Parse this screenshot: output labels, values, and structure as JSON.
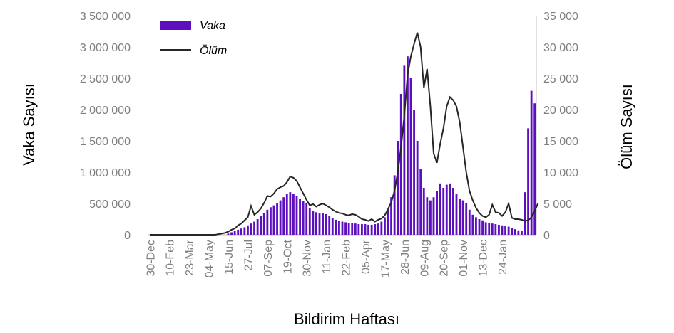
{
  "chart_data": {
    "type": "bar+line",
    "xlabel": "Bildirim Haftası",
    "ylabel_left": "Vaka Sayısı",
    "ylabel_right": "Ölüm Sayısı",
    "ylim_left": [
      0,
      3500000
    ],
    "ylim_right": [
      0,
      35000
    ],
    "yticks_left": [
      "0",
      "500 000",
      "1 000 000",
      "1 500 000",
      "2 000 000",
      "2 500 000",
      "3 000 000",
      "3 500 000"
    ],
    "yticks_right": [
      "0",
      "5 000",
      "10 000",
      "15 000",
      "20 000",
      "25 000",
      "30 000",
      "35 000"
    ],
    "x_tick_labels": [
      "30-Dec",
      "10-Feb",
      "23-Mar",
      "04-May",
      "15-Jun",
      "27-Jul",
      "07-Sep",
      "19-Oct",
      "30-Nov",
      "11-Jan",
      "22-Feb",
      "05-Apr",
      "17-May",
      "28-Jun",
      "09-Aug",
      "20-Sep",
      "01-Nov",
      "13-Dec",
      "24-Jan"
    ],
    "x_tick_every": 6,
    "legend": {
      "position": "top-left",
      "bar_label": "Vaka",
      "line_label": "Ölüm"
    },
    "colors": {
      "bar": "#5b0fbe",
      "line": "#262626",
      "axis": "#bfbfbf",
      "tick_text": "#7f7f7f"
    },
    "series": [
      {
        "name": "Vaka",
        "kind": "bar",
        "axis": "left",
        "values": [
          0,
          0,
          0,
          0,
          0,
          0,
          0,
          0,
          0,
          0,
          0,
          0,
          0,
          0,
          0,
          0,
          0,
          0,
          0,
          0,
          0,
          0,
          0,
          0,
          20000,
          40000,
          60000,
          80000,
          100000,
          120000,
          150000,
          180000,
          210000,
          250000,
          300000,
          350000,
          400000,
          440000,
          470000,
          500000,
          550000,
          600000,
          650000,
          680000,
          650000,
          620000,
          580000,
          540000,
          500000,
          420000,
          380000,
          360000,
          340000,
          350000,
          330000,
          300000,
          270000,
          240000,
          220000,
          210000,
          200000,
          190000,
          190000,
          180000,
          170000,
          170000,
          170000,
          160000,
          160000,
          170000,
          180000,
          210000,
          280000,
          400000,
          600000,
          950000,
          1500000,
          2250000,
          2700000,
          2850000,
          2500000,
          2000000,
          1500000,
          1050000,
          750000,
          600000,
          550000,
          600000,
          700000,
          820000,
          750000,
          800000,
          820000,
          750000,
          650000,
          580000,
          550000,
          500000,
          400000,
          320000,
          280000,
          250000,
          230000,
          200000,
          190000,
          180000,
          170000,
          160000,
          150000,
          140000,
          130000,
          110000,
          90000,
          70000,
          60000,
          680000,
          1700000,
          2300000,
          2100000
        ]
      },
      {
        "name": "Ölüm",
        "kind": "line",
        "axis": "right",
        "values": [
          0,
          0,
          0,
          0,
          0,
          0,
          0,
          0,
          0,
          0,
          0,
          0,
          0,
          0,
          0,
          0,
          0,
          0,
          0,
          0,
          0,
          100,
          200,
          300,
          500,
          800,
          1000,
          1500,
          1800,
          2300,
          2800,
          4600,
          3200,
          3600,
          4200,
          5100,
          6200,
          6100,
          6600,
          7300,
          7600,
          7800,
          8400,
          9300,
          9100,
          8600,
          7600,
          6600,
          5600,
          4700,
          4900,
          4500,
          4800,
          5000,
          4700,
          4400,
          4000,
          3700,
          3500,
          3400,
          3200,
          3100,
          3300,
          3200,
          2900,
          2500,
          2400,
          2200,
          2500,
          2100,
          2400,
          2600,
          3100,
          4100,
          5200,
          7000,
          10000,
          14000,
          19000,
          25500,
          28500,
          30500,
          32300,
          30000,
          23500,
          26500,
          20500,
          13000,
          11500,
          14500,
          17000,
          20500,
          22000,
          21500,
          20500,
          18000,
          14000,
          10000,
          7000,
          5500,
          4300,
          3500,
          3000,
          2800,
          3200,
          4800,
          3600,
          3500,
          3000,
          3600,
          5000,
          2700,
          2500,
          2500,
          2400,
          2200,
          2300,
          2800,
          3800,
          5000
        ]
      }
    ]
  }
}
